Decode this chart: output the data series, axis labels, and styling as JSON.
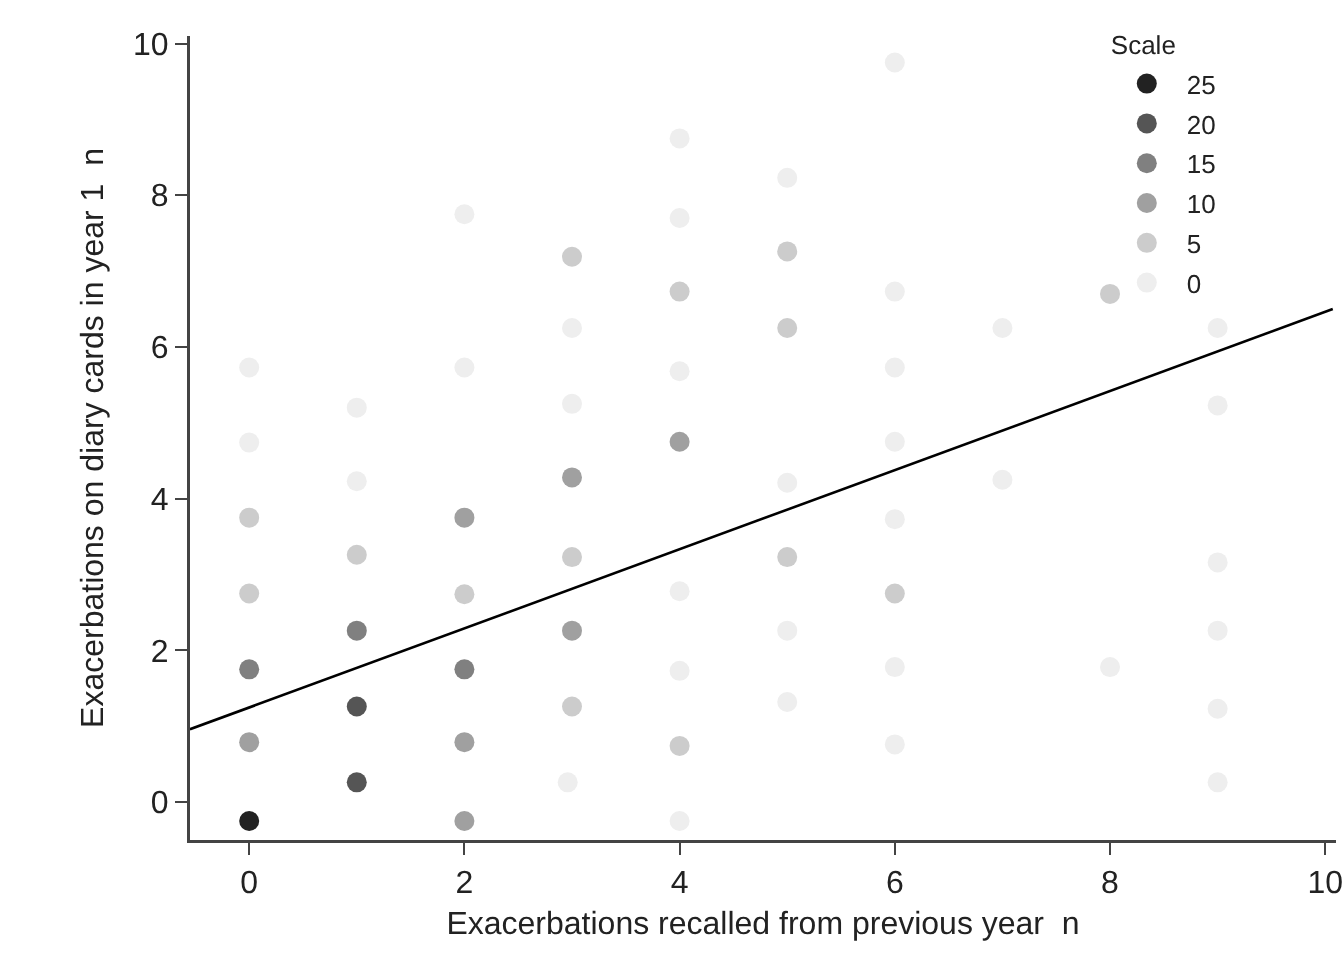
{
  "chart_data": {
    "type": "scatter",
    "xlabel": "Exacerbations recalled from previous year  n",
    "ylabel": "Exacerbations on diary cards in year 1  n",
    "legend_title": "Scale",
    "xlim": [
      -0.55,
      10.1
    ],
    "ylim": [
      -0.5,
      10.1
    ],
    "xticks": [
      0,
      2,
      4,
      6,
      8,
      10
    ],
    "yticks": [
      0,
      2,
      4,
      6,
      8,
      10
    ],
    "grid": false,
    "legend": "top right",
    "marker": "circle",
    "series": [
      {
        "name": "25",
        "color": "#222222",
        "x": [
          0
        ],
        "values": [
          -0.25
        ]
      },
      {
        "name": "20",
        "color": "#555555",
        "x": [
          1,
          1
        ],
        "values": [
          1.26,
          0.26
        ]
      },
      {
        "name": "15",
        "color": "#808080",
        "x": [
          0,
          1,
          2
        ],
        "values": [
          1.75,
          2.26,
          1.75
        ]
      },
      {
        "name": "10",
        "color": "#a0a0a0",
        "x": [
          0,
          2,
          2,
          2,
          3,
          3,
          4
        ],
        "values": [
          0.79,
          3.75,
          0.79,
          -0.25,
          4.28,
          2.26,
          4.75
        ]
      },
      {
        "name": "5",
        "color": "#cccccc",
        "x": [
          0,
          0,
          1,
          2,
          3,
          3,
          3,
          4,
          4,
          5,
          5,
          5,
          6,
          8
        ],
        "values": [
          3.75,
          2.75,
          3.26,
          2.74,
          7.19,
          3.23,
          1.26,
          6.73,
          0.74,
          7.26,
          6.25,
          3.23,
          2.75,
          6.7
        ]
      },
      {
        "name": "0",
        "color": "#eeeeee",
        "x": [
          0,
          0,
          1,
          1,
          2,
          2,
          3,
          3,
          2.96,
          4,
          4,
          4,
          4,
          4,
          4,
          5,
          5,
          5,
          5,
          6,
          6,
          6,
          6,
          6,
          6,
          6,
          7,
          7,
          8,
          9,
          9,
          9,
          9,
          9,
          9
        ],
        "values": [
          5.73,
          4.74,
          5.2,
          4.23,
          7.75,
          5.73,
          6.25,
          5.25,
          0.26,
          8.75,
          7.7,
          5.68,
          2.78,
          1.73,
          -0.25,
          8.23,
          4.21,
          2.26,
          1.32,
          9.75,
          6.73,
          5.73,
          4.75,
          3.73,
          1.78,
          0.76,
          6.25,
          4.25,
          1.78,
          6.25,
          5.23,
          3.16,
          2.26,
          1.23,
          0.26
        ]
      },
      {
        "type": "line",
        "x": [
          -0.55,
          10.07
        ],
        "values": [
          0.96,
          6.5
        ],
        "color": "#000000",
        "marker": "none",
        "line_style": "solid"
      }
    ]
  }
}
